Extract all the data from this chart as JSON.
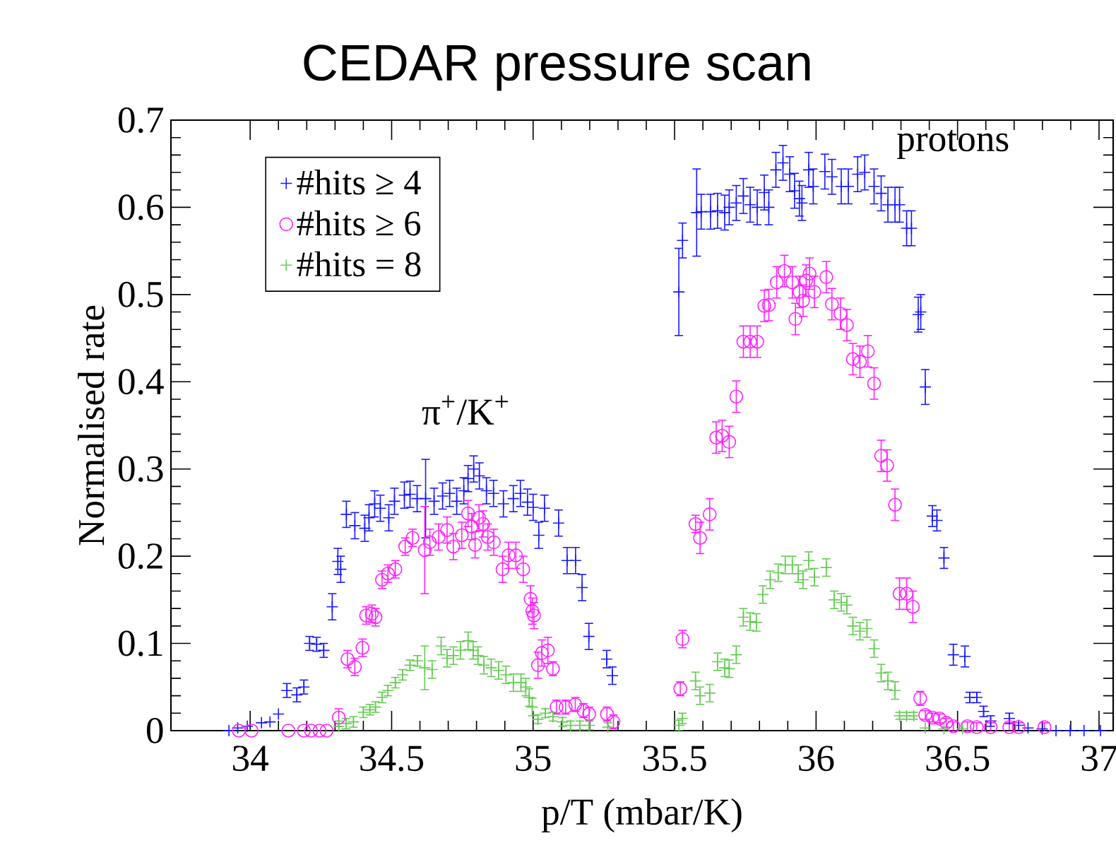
{
  "chart_data": {
    "type": "scatter",
    "title": "CEDAR pressure scan",
    "xlabel": "p/T (mbar/K)",
    "ylabel": "Normalised rate",
    "xlim": [
      33.72,
      37.05
    ],
    "ylim": [
      0,
      0.7
    ],
    "xticks": [
      34,
      34.5,
      35,
      35.5,
      36,
      36.5,
      37
    ],
    "yticks": [
      0,
      0.1,
      0.2,
      0.3,
      0.4,
      0.5,
      0.6,
      0.7
    ],
    "legend": "top left",
    "annotations": [
      "π$^{+}$/K$^{+}$",
      "protons"
    ],
    "series": [
      {
        "name": "#hits ≥ 4",
        "color": "#1a1aff",
        "marker": "cross",
        "x": [
          33.925,
          33.956,
          33.99,
          34.04,
          34.07,
          34.1,
          34.13,
          34.165,
          34.19,
          34.21,
          34.235,
          34.26,
          34.29,
          34.31,
          34.32,
          34.34,
          34.37,
          34.405,
          34.42,
          34.44,
          34.46,
          34.49,
          34.51,
          34.545,
          34.565,
          34.59,
          34.62,
          34.65,
          34.68,
          34.705,
          34.73,
          34.755,
          34.77,
          34.79,
          34.81,
          34.835,
          34.86,
          34.895,
          34.93,
          34.955,
          34.98,
          35.0,
          35.02,
          35.04,
          35.09,
          35.12,
          35.15,
          35.173,
          35.197,
          35.26,
          35.28,
          35.515,
          35.528,
          35.578,
          35.594,
          35.627,
          35.652,
          35.677,
          35.693,
          35.718,
          35.743,
          35.767,
          35.792,
          35.817,
          35.833,
          35.858,
          35.883,
          35.907,
          35.924,
          35.941,
          35.95,
          35.974,
          35.99,
          36.031,
          36.056,
          36.089,
          36.114,
          36.147,
          36.172,
          36.205,
          36.23,
          36.254,
          36.279,
          36.295,
          36.32,
          36.337,
          36.361,
          36.37,
          36.386,
          36.411,
          36.427,
          36.452,
          36.485,
          36.526,
          36.543,
          36.568,
          36.592,
          36.617,
          36.683,
          36.716,
          36.749,
          36.799,
          36.848,
          36.898,
          36.947,
          37.005
        ],
        "values": [
          0,
          0.003,
          0.005,
          0.009,
          0.01,
          0.019,
          0.046,
          0.041,
          0.05,
          0.1,
          0.099,
          0.092,
          0.142,
          0.194,
          0.185,
          0.248,
          0.235,
          0.232,
          0.244,
          0.26,
          0.255,
          0.244,
          0.263,
          0.27,
          0.271,
          0.266,
          0.266,
          0.263,
          0.269,
          0.272,
          0.263,
          0.275,
          0.289,
          0.3,
          0.292,
          0.275,
          0.272,
          0.26,
          0.266,
          0.272,
          0.262,
          0.256,
          0.224,
          0.255,
          0.238,
          0.195,
          0.195,
          0.164,
          0.108,
          0.082,
          0.063,
          0.503,
          0.562,
          0.594,
          0.595,
          0.595,
          0.596,
          0.594,
          0.6,
          0.605,
          0.613,
          0.603,
          0.6,
          0.617,
          0.6,
          0.643,
          0.651,
          0.638,
          0.619,
          0.61,
          0.605,
          0.643,
          0.624,
          0.641,
          0.635,
          0.624,
          0.624,
          0.638,
          0.64,
          0.624,
          0.616,
          0.603,
          0.603,
          0.603,
          0.576,
          0.576,
          0.477,
          0.48,
          0.394,
          0.246,
          0.241,
          0.198,
          0.087,
          0.085,
          0.038,
          0.038,
          0.022,
          0.011,
          0.014,
          0.006,
          0.003,
          0.002,
          0,
          0,
          0,
          0
        ],
        "errors": [
          null,
          null,
          null,
          null,
          null,
          null,
          0.008,
          0.008,
          0.008,
          0.008,
          0.008,
          0.008,
          0.015,
          0.015,
          0.015,
          0.015,
          0.015,
          0.015,
          0.015,
          0.015,
          0.015,
          0.015,
          0.015,
          0.015,
          0.015,
          0.015,
          0.045,
          0.015,
          0.015,
          0.015,
          0.015,
          0.015,
          0.015,
          0.015,
          0.015,
          0.015,
          0.015,
          0.015,
          0.015,
          0.015,
          0.015,
          0.015,
          0.015,
          0.015,
          0.015,
          0.015,
          0.015,
          0.015,
          0.015,
          0.01,
          0.01,
          0.05,
          0.02,
          0.05,
          0.02,
          0.02,
          0.02,
          0.02,
          0.02,
          0.02,
          0.02,
          0.02,
          0.02,
          0.02,
          0.02,
          0.02,
          0.02,
          0.02,
          0.02,
          0.02,
          0.02,
          0.02,
          0.02,
          0.02,
          0.02,
          0.02,
          0.02,
          0.02,
          0.02,
          0.02,
          0.02,
          0.02,
          0.02,
          0.02,
          0.02,
          0.02,
          0.02,
          0.02,
          0.02,
          0.012,
          0.012,
          0.012,
          0.012,
          0.012,
          0.006,
          0.006,
          0.006,
          0.006,
          0.006,
          null,
          null,
          null,
          null,
          null,
          null,
          null
        ]
      },
      {
        "name": "#hits ≥ 6",
        "color": "#ff22ff",
        "marker": "circle",
        "x": [
          33.96,
          34.005,
          34.135,
          34.19,
          34.215,
          34.245,
          34.27,
          34.313,
          34.344,
          34.37,
          34.397,
          34.41,
          34.43,
          34.443,
          34.466,
          34.487,
          34.513,
          34.548,
          34.574,
          34.617,
          34.635,
          34.666,
          34.696,
          34.718,
          34.748,
          34.77,
          34.783,
          34.795,
          34.809,
          34.823,
          34.84,
          34.861,
          34.892,
          34.913,
          34.939,
          34.965,
          34.991,
          34.997,
          35.003,
          35.017,
          35.031,
          35.052,
          35.07,
          35.083,
          35.115,
          35.149,
          35.178,
          35.198,
          35.261,
          35.284,
          35.52,
          35.528,
          35.574,
          35.59,
          35.624,
          35.647,
          35.668,
          35.693,
          35.718,
          35.743,
          35.767,
          35.792,
          35.817,
          35.833,
          35.861,
          35.888,
          35.916,
          35.927,
          35.941,
          35.954,
          35.965,
          35.977,
          35.994,
          36.036,
          36.056,
          36.086,
          36.109,
          36.13,
          36.155,
          36.183,
          36.205,
          36.23,
          36.251,
          36.279,
          36.295,
          36.32,
          36.342,
          36.368,
          36.386,
          36.411,
          36.436,
          36.46,
          36.485,
          36.535,
          36.568,
          36.617,
          36.683,
          36.716,
          36.807
        ],
        "values": [
          0,
          0,
          0,
          0,
          0,
          0,
          0,
          0.015,
          0.082,
          0.073,
          0.095,
          0.132,
          0.134,
          0.13,
          0.173,
          0.18,
          0.185,
          0.211,
          0.221,
          0.207,
          0.216,
          0.222,
          0.23,
          0.211,
          0.224,
          0.249,
          0.234,
          0.213,
          0.244,
          0.237,
          0.222,
          0.216,
          0.185,
          0.201,
          0.201,
          0.185,
          0.151,
          0.137,
          0.132,
          0.075,
          0.089,
          0.092,
          0.071,
          0.027,
          0.027,
          0.03,
          0.023,
          0.019,
          0.019,
          0.01,
          0.048,
          0.105,
          0.237,
          0.221,
          0.248,
          0.336,
          0.338,
          0.331,
          0.383,
          0.446,
          0.446,
          0.446,
          0.487,
          0.488,
          0.514,
          0.527,
          0.514,
          0.472,
          0.503,
          0.493,
          0.516,
          0.524,
          0.503,
          0.52,
          0.489,
          0.478,
          0.465,
          0.426,
          0.423,
          0.435,
          0.398,
          0.315,
          0.304,
          0.259,
          0.157,
          0.157,
          0.142,
          0.037,
          0.018,
          0.015,
          0.014,
          0.009,
          0.005,
          0.005,
          0.004,
          0.004,
          0.004,
          0.004,
          0.004
        ],
        "errors": [
          null,
          null,
          null,
          null,
          null,
          null,
          null,
          0.01,
          0.01,
          0.01,
          0.01,
          0.01,
          0.01,
          0.01,
          0.01,
          0.01,
          0.01,
          0.01,
          0.01,
          0.05,
          0.015,
          0.015,
          0.015,
          0.015,
          0.015,
          0.015,
          0.015,
          0.015,
          0.015,
          0.015,
          0.015,
          0.015,
          0.015,
          0.015,
          0.015,
          0.015,
          0.015,
          0.015,
          0.015,
          0.015,
          0.015,
          0.015,
          0.008,
          0.008,
          0.008,
          0.008,
          0.008,
          0.008,
          0.008,
          0.008,
          0.008,
          0.01,
          0.01,
          0.018,
          0.018,
          0.018,
          0.018,
          0.018,
          0.018,
          0.018,
          0.018,
          0.018,
          0.018,
          0.018,
          0.018,
          0.018,
          0.018,
          0.018,
          0.018,
          0.018,
          0.018,
          0.018,
          0.018,
          0.018,
          0.018,
          0.018,
          0.018,
          0.018,
          0.018,
          0.018,
          0.018,
          0.018,
          0.018,
          0.018,
          0.018,
          0.018,
          0.018,
          0.008,
          0.005,
          0.005,
          0.005,
          0.005,
          0.005,
          0.005,
          0.005,
          0.005,
          0.005,
          0.005,
          0.005
        ]
      },
      {
        "name": "#hits = 8",
        "color": "#66cc55",
        "marker": "cross",
        "x": [
          34.313,
          34.339,
          34.365,
          34.4,
          34.423,
          34.443,
          34.466,
          34.487,
          34.513,
          34.539,
          34.565,
          34.591,
          34.617,
          34.643,
          34.675,
          34.696,
          34.718,
          34.743,
          34.77,
          34.788,
          34.805,
          34.826,
          34.852,
          34.878,
          34.904,
          34.93,
          34.957,
          34.974,
          34.986,
          34.997,
          35.017,
          35.043,
          35.07,
          35.104,
          35.132,
          35.165,
          35.198,
          35.264,
          35.515,
          35.528,
          35.574,
          35.59,
          35.624,
          35.652,
          35.677,
          35.693,
          35.718,
          35.743,
          35.767,
          35.789,
          35.812,
          35.838,
          35.866,
          35.891,
          35.916,
          35.937,
          35.954,
          35.974,
          35.994,
          36.036,
          36.064,
          36.089,
          36.109,
          36.13,
          36.155,
          36.18,
          36.205,
          36.23,
          36.254,
          36.279,
          36.295,
          36.32,
          36.345,
          36.386,
          36.452,
          36.518
        ],
        "values": [
          0.005,
          0.008,
          0.01,
          0.021,
          0.024,
          0.027,
          0.038,
          0.046,
          0.055,
          0.064,
          0.075,
          0.08,
          0.072,
          0.07,
          0.097,
          0.083,
          0.086,
          0.092,
          0.103,
          0.092,
          0.086,
          0.075,
          0.072,
          0.069,
          0.064,
          0.055,
          0.055,
          0.05,
          0.038,
          0.027,
          0.013,
          0.02,
          0.016,
          0.01,
          0.006,
          0.006,
          0.006,
          0.004,
          0.006,
          0.014,
          0.057,
          0.04,
          0.043,
          0.079,
          0.072,
          0.071,
          0.087,
          0.13,
          0.125,
          0.124,
          0.156,
          0.173,
          0.181,
          0.19,
          0.19,
          0.18,
          0.173,
          0.195,
          0.176,
          0.187,
          0.15,
          0.147,
          0.144,
          0.12,
          0.114,
          0.117,
          0.094,
          0.066,
          0.057,
          0.046,
          0.017,
          0.017,
          0.017,
          0.003,
          0.002,
          0.002
        ],
        "errors": [
          0.006,
          0.006,
          0.006,
          0.006,
          0.006,
          0.006,
          0.006,
          0.006,
          0.006,
          0.006,
          0.006,
          0.006,
          0.025,
          0.01,
          0.01,
          0.01,
          0.01,
          0.01,
          0.01,
          0.01,
          0.01,
          0.01,
          0.01,
          0.01,
          0.01,
          0.01,
          0.01,
          0.01,
          0.01,
          0.01,
          0.005,
          0.005,
          0.005,
          0.005,
          0.005,
          0.005,
          0.005,
          0.005,
          0.006,
          0.006,
          0.01,
          0.01,
          0.01,
          0.01,
          0.01,
          0.01,
          0.01,
          0.01,
          0.01,
          0.01,
          0.01,
          0.01,
          0.01,
          0.01,
          0.01,
          0.01,
          0.01,
          0.01,
          0.01,
          0.01,
          0.01,
          0.01,
          0.01,
          0.01,
          0.01,
          0.01,
          0.01,
          0.01,
          0.01,
          0.01,
          0.004,
          0.004,
          0.004,
          null,
          null,
          null
        ]
      }
    ]
  }
}
